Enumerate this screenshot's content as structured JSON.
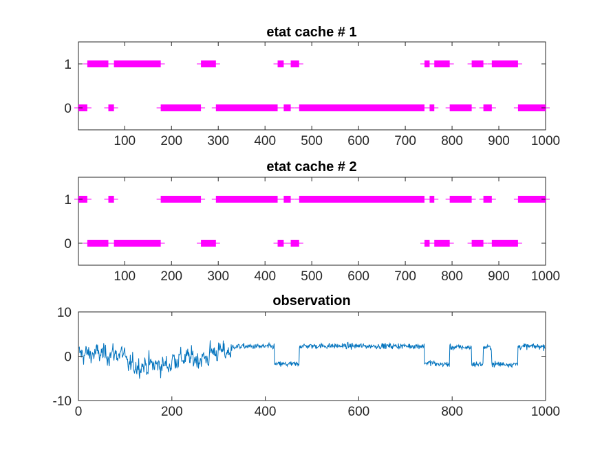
{
  "chart_data": [
    {
      "type": "scatter",
      "title": "etat cache # 1",
      "xlim": [
        1,
        1000
      ],
      "ylim": [
        -0.5,
        1.5
      ],
      "xticks": [
        100,
        200,
        300,
        400,
        500,
        600,
        700,
        800,
        900,
        1000
      ],
      "yticks": [
        0,
        1
      ],
      "marker_color": "#ff00ff",
      "segments": [
        {
          "state": 0,
          "x": [
            1,
            20
          ]
        },
        {
          "state": 1,
          "x": [
            20,
            65
          ]
        },
        {
          "state": 0,
          "x": [
            65,
            77
          ]
        },
        {
          "state": 1,
          "x": [
            77,
            177
          ]
        },
        {
          "state": 0,
          "x": [
            177,
            263
          ]
        },
        {
          "state": 1,
          "x": [
            263,
            295
          ]
        },
        {
          "state": 0,
          "x": [
            295,
            427
          ]
        },
        {
          "state": 1,
          "x": [
            427,
            440
          ]
        },
        {
          "state": 0,
          "x": [
            440,
            455
          ]
        },
        {
          "state": 1,
          "x": [
            455,
            473
          ]
        },
        {
          "state": 0,
          "x": [
            473,
            741
          ]
        },
        {
          "state": 1,
          "x": [
            741,
            752
          ]
        },
        {
          "state": 0,
          "x": [
            752,
            762
          ]
        },
        {
          "state": 1,
          "x": [
            762,
            795
          ]
        },
        {
          "state": 0,
          "x": [
            795,
            842
          ]
        },
        {
          "state": 1,
          "x": [
            842,
            867
          ]
        },
        {
          "state": 0,
          "x": [
            867,
            885
          ]
        },
        {
          "state": 1,
          "x": [
            885,
            941
          ]
        },
        {
          "state": 0,
          "x": [
            941,
            1000
          ]
        }
      ]
    },
    {
      "type": "scatter",
      "title": "etat cache # 2",
      "xlim": [
        1,
        1000
      ],
      "ylim": [
        -0.5,
        1.5
      ],
      "xticks": [
        100,
        200,
        300,
        400,
        500,
        600,
        700,
        800,
        900,
        1000
      ],
      "yticks": [
        0,
        1
      ],
      "marker_color": "#ff00ff",
      "segments": [
        {
          "state": 1,
          "x": [
            1,
            20
          ]
        },
        {
          "state": 0,
          "x": [
            20,
            65
          ]
        },
        {
          "state": 1,
          "x": [
            65,
            77
          ]
        },
        {
          "state": 0,
          "x": [
            77,
            177
          ]
        },
        {
          "state": 1,
          "x": [
            177,
            263
          ]
        },
        {
          "state": 0,
          "x": [
            263,
            295
          ]
        },
        {
          "state": 1,
          "x": [
            295,
            427
          ]
        },
        {
          "state": 0,
          "x": [
            427,
            440
          ]
        },
        {
          "state": 1,
          "x": [
            440,
            455
          ]
        },
        {
          "state": 0,
          "x": [
            455,
            473
          ]
        },
        {
          "state": 1,
          "x": [
            473,
            741
          ]
        },
        {
          "state": 0,
          "x": [
            741,
            752
          ]
        },
        {
          "state": 1,
          "x": [
            752,
            762
          ]
        },
        {
          "state": 0,
          "x": [
            762,
            795
          ]
        },
        {
          "state": 1,
          "x": [
            795,
            842
          ]
        },
        {
          "state": 0,
          "x": [
            842,
            867
          ]
        },
        {
          "state": 1,
          "x": [
            867,
            885
          ]
        },
        {
          "state": 0,
          "x": [
            885,
            941
          ]
        },
        {
          "state": 1,
          "x": [
            941,
            1000
          ]
        }
      ]
    },
    {
      "type": "line",
      "title": "observation",
      "xlim": [
        0,
        1000
      ],
      "ylim": [
        -10,
        10
      ],
      "xticks": [
        0,
        200,
        400,
        600,
        800,
        1000
      ],
      "yticks": [
        -10,
        0,
        10
      ],
      "line_color": "#0072bd",
      "regimes": [
        {
          "x": [
            1,
            330
          ],
          "mean": -0.5,
          "noise": "high"
        },
        {
          "x": [
            330,
            420
          ],
          "mean": 2.2,
          "noise": "low"
        },
        {
          "x": [
            420,
            473
          ],
          "mean": -1.8,
          "noise": "low"
        },
        {
          "x": [
            473,
            741
          ],
          "mean": 2.3,
          "noise": "low"
        },
        {
          "x": [
            741,
            762
          ],
          "mean": -1.5,
          "noise": "low"
        },
        {
          "x": [
            762,
            795
          ],
          "mean": -1.8,
          "noise": "low"
        },
        {
          "x": [
            795,
            842
          ],
          "mean": 2.0,
          "noise": "low"
        },
        {
          "x": [
            842,
            867
          ],
          "mean": -1.8,
          "noise": "low"
        },
        {
          "x": [
            867,
            885
          ],
          "mean": 2.0,
          "noise": "low"
        },
        {
          "x": [
            885,
            941
          ],
          "mean": -1.8,
          "noise": "low"
        },
        {
          "x": [
            941,
            1000
          ],
          "mean": 2.2,
          "noise": "low"
        }
      ]
    }
  ]
}
